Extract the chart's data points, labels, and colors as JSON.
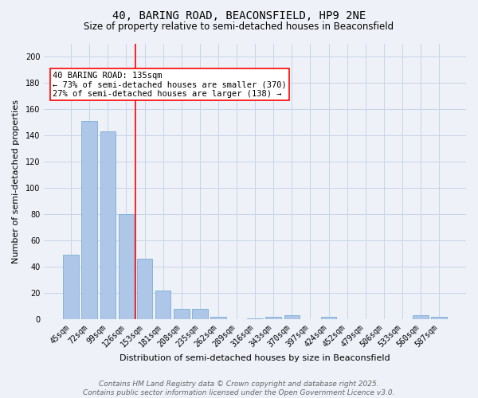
{
  "title": "40, BARING ROAD, BEACONSFIELD, HP9 2NE",
  "subtitle": "Size of property relative to semi-detached houses in Beaconsfield",
  "xlabel": "Distribution of semi-detached houses by size in Beaconsfield",
  "ylabel": "Number of semi-detached properties",
  "categories": [
    "45sqm",
    "72sqm",
    "99sqm",
    "126sqm",
    "153sqm",
    "181sqm",
    "208sqm",
    "235sqm",
    "262sqm",
    "289sqm",
    "316sqm",
    "343sqm",
    "370sqm",
    "397sqm",
    "424sqm",
    "452sqm",
    "479sqm",
    "506sqm",
    "533sqm",
    "560sqm",
    "587sqm"
  ],
  "values": [
    49,
    151,
    143,
    80,
    46,
    22,
    8,
    8,
    2,
    0,
    1,
    2,
    3,
    0,
    2,
    0,
    0,
    0,
    0,
    3,
    2
  ],
  "bar_color": "#aec6e8",
  "bar_edge_color": "#7aafd4",
  "bar_linewidth": 0.6,
  "grid_color": "#c8d4e8",
  "background_color": "#eef2f8",
  "vline_x": 3.5,
  "vline_color": "red",
  "vline_linewidth": 1.2,
  "annotation_text": "40 BARING ROAD: 135sqm\n← 73% of semi-detached houses are smaller (370)\n27% of semi-detached houses are larger (138) →",
  "annotation_box_color": "white",
  "annotation_box_edge_color": "red",
  "ylim": [
    0,
    210
  ],
  "yticks": [
    0,
    20,
    40,
    60,
    80,
    100,
    120,
    140,
    160,
    180,
    200
  ],
  "footer_line1": "Contains HM Land Registry data © Crown copyright and database right 2025.",
  "footer_line2": "Contains public sector information licensed under the Open Government Licence v3.0.",
  "title_fontsize": 10,
  "subtitle_fontsize": 8.5,
  "axis_label_fontsize": 8,
  "tick_fontsize": 7,
  "annotation_fontsize": 7.5,
  "footer_fontsize": 6.5
}
